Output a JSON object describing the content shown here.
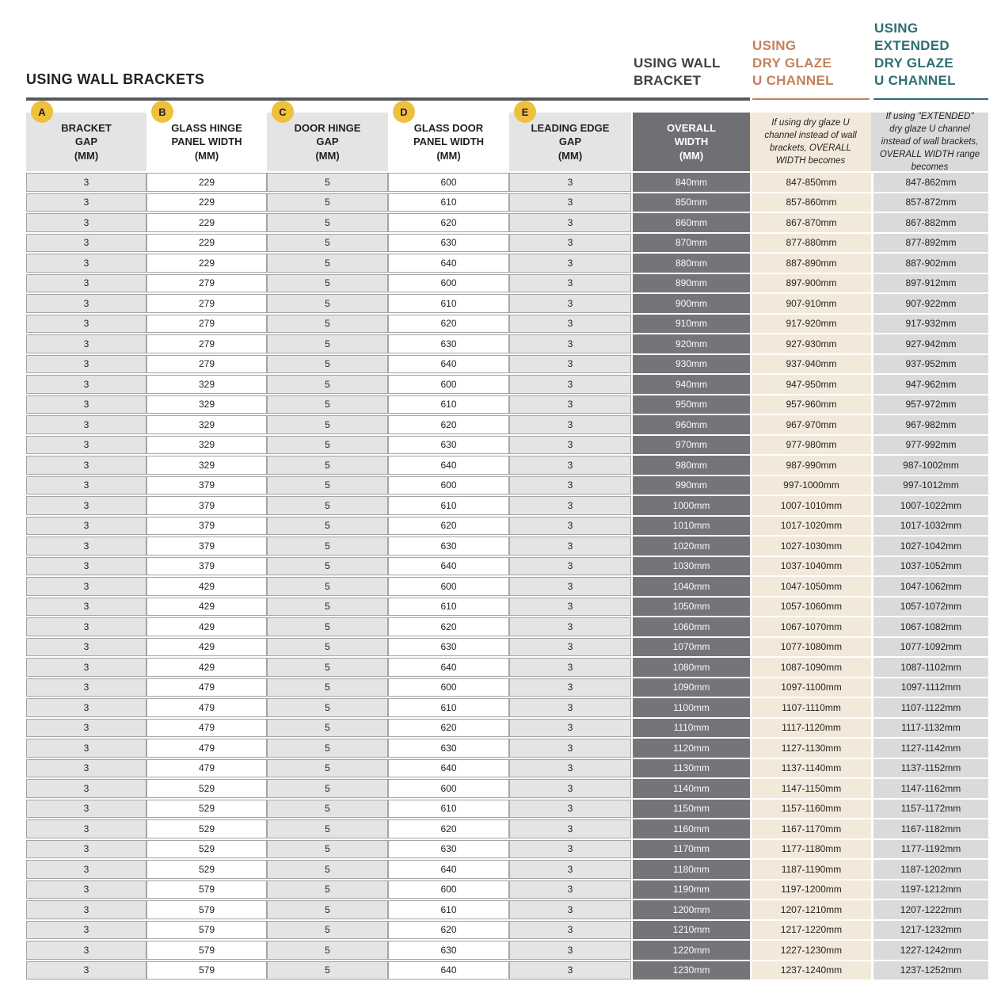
{
  "page_title": "USING WALL BRACKETS",
  "section_headers": {
    "wall_bracket": "USING WALL\nBRACKET",
    "dry_glaze": "USING\nDRY GLAZE\nU CHANNEL",
    "extended_dry_glaze": "USING\nEXTENDED\nDRY GLAZE\nU CHANNEL"
  },
  "colors": {
    "dry_glaze_accent": "#c5805c",
    "extended_dry_glaze_accent": "#2e6e73",
    "badge_yellow": "#efc03d",
    "dark_column": "#6f7073",
    "cream_column": "#f3e9da",
    "light_gray_column": "#d8dadb",
    "row_gray": "#e3e4e4",
    "rule_dark": "#58595b"
  },
  "columns": [
    {
      "id": "bracket-gap",
      "badge": "A",
      "header": "BRACKET\nGAP\n(MM)",
      "style": "gray"
    },
    {
      "id": "glass-hinge-panel-width",
      "badge": "B",
      "header": "GLASS HINGE\nPANEL WIDTH\n(MM)",
      "style": "white"
    },
    {
      "id": "door-hinge-gap",
      "badge": "C",
      "header": "DOOR HINGE\nGAP\n(MM)",
      "style": "gray"
    },
    {
      "id": "glass-door-panel-width",
      "badge": "D",
      "header": "GLASS DOOR\nPANEL WIDTH\n(MM)",
      "style": "white"
    },
    {
      "id": "leading-edge-gap",
      "badge": "E",
      "header": "LEADING EDGE\nGAP\n(MM)",
      "style": "gray"
    },
    {
      "id": "overall-width",
      "header": "OVERALL\nWIDTH\n(MM)",
      "style": "dark"
    },
    {
      "id": "dry-glaze-overall-width",
      "header": "If using dry glaze U channel instead of wall brackets, OVERALL WIDTH becomes",
      "style": "cream"
    },
    {
      "id": "extended-dry-glaze-overall-width",
      "header": "If using \"EXTENDED\" dry glaze U channel instead of wall brackets, OVERALL WIDTH range becomes",
      "style": "lgray"
    }
  ],
  "table": {
    "rows": [
      [
        "3",
        "229",
        "5",
        "600",
        "3",
        "840mm",
        "847-850mm",
        "847-862mm"
      ],
      [
        "3",
        "229",
        "5",
        "610",
        "3",
        "850mm",
        "857-860mm",
        "857-872mm"
      ],
      [
        "3",
        "229",
        "5",
        "620",
        "3",
        "860mm",
        "867-870mm",
        "867-882mm"
      ],
      [
        "3",
        "229",
        "5",
        "630",
        "3",
        "870mm",
        "877-880mm",
        "877-892mm"
      ],
      [
        "3",
        "229",
        "5",
        "640",
        "3",
        "880mm",
        "887-890mm",
        "887-902mm"
      ],
      [
        "3",
        "279",
        "5",
        "600",
        "3",
        "890mm",
        "897-900mm",
        "897-912mm"
      ],
      [
        "3",
        "279",
        "5",
        "610",
        "3",
        "900mm",
        "907-910mm",
        "907-922mm"
      ],
      [
        "3",
        "279",
        "5",
        "620",
        "3",
        "910mm",
        "917-920mm",
        "917-932mm"
      ],
      [
        "3",
        "279",
        "5",
        "630",
        "3",
        "920mm",
        "927-930mm",
        "927-942mm"
      ],
      [
        "3",
        "279",
        "5",
        "640",
        "3",
        "930mm",
        "937-940mm",
        "937-952mm"
      ],
      [
        "3",
        "329",
        "5",
        "600",
        "3",
        "940mm",
        "947-950mm",
        "947-962mm"
      ],
      [
        "3",
        "329",
        "5",
        "610",
        "3",
        "950mm",
        "957-960mm",
        "957-972mm"
      ],
      [
        "3",
        "329",
        "5",
        "620",
        "3",
        "960mm",
        "967-970mm",
        "967-982mm"
      ],
      [
        "3",
        "329",
        "5",
        "630",
        "3",
        "970mm",
        "977-980mm",
        "977-992mm"
      ],
      [
        "3",
        "329",
        "5",
        "640",
        "3",
        "980mm",
        "987-990mm",
        "987-1002mm"
      ],
      [
        "3",
        "379",
        "5",
        "600",
        "3",
        "990mm",
        "997-1000mm",
        "997-1012mm"
      ],
      [
        "3",
        "379",
        "5",
        "610",
        "3",
        "1000mm",
        "1007-1010mm",
        "1007-1022mm"
      ],
      [
        "3",
        "379",
        "5",
        "620",
        "3",
        "1010mm",
        "1017-1020mm",
        "1017-1032mm"
      ],
      [
        "3",
        "379",
        "5",
        "630",
        "3",
        "1020mm",
        "1027-1030mm",
        "1027-1042mm"
      ],
      [
        "3",
        "379",
        "5",
        "640",
        "3",
        "1030mm",
        "1037-1040mm",
        "1037-1052mm"
      ],
      [
        "3",
        "429",
        "5",
        "600",
        "3",
        "1040mm",
        "1047-1050mm",
        "1047-1062mm"
      ],
      [
        "3",
        "429",
        "5",
        "610",
        "3",
        "1050mm",
        "1057-1060mm",
        "1057-1072mm"
      ],
      [
        "3",
        "429",
        "5",
        "620",
        "3",
        "1060mm",
        "1067-1070mm",
        "1067-1082mm"
      ],
      [
        "3",
        "429",
        "5",
        "630",
        "3",
        "1070mm",
        "1077-1080mm",
        "1077-1092mm"
      ],
      [
        "3",
        "429",
        "5",
        "640",
        "3",
        "1080mm",
        "1087-1090mm",
        "1087-1102mm"
      ],
      [
        "3",
        "479",
        "5",
        "600",
        "3",
        "1090mm",
        "1097-1100mm",
        "1097-1112mm"
      ],
      [
        "3",
        "479",
        "5",
        "610",
        "3",
        "1100mm",
        "1107-1110mm",
        "1107-1122mm"
      ],
      [
        "3",
        "479",
        "5",
        "620",
        "3",
        "1110mm",
        "1117-1120mm",
        "1117-1132mm"
      ],
      [
        "3",
        "479",
        "5",
        "630",
        "3",
        "1120mm",
        "1127-1130mm",
        "1127-1142mm"
      ],
      [
        "3",
        "479",
        "5",
        "640",
        "3",
        "1130mm",
        "1137-1140mm",
        "1137-1152mm"
      ],
      [
        "3",
        "529",
        "5",
        "600",
        "3",
        "1140mm",
        "1147-1150mm",
        "1147-1162mm"
      ],
      [
        "3",
        "529",
        "5",
        "610",
        "3",
        "1150mm",
        "1157-1160mm",
        "1157-1172mm"
      ],
      [
        "3",
        "529",
        "5",
        "620",
        "3",
        "1160mm",
        "1167-1170mm",
        "1167-1182mm"
      ],
      [
        "3",
        "529",
        "5",
        "630",
        "3",
        "1170mm",
        "1177-1180mm",
        "1177-1192mm"
      ],
      [
        "3",
        "529",
        "5",
        "640",
        "3",
        "1180mm",
        "1187-1190mm",
        "1187-1202mm"
      ],
      [
        "3",
        "579",
        "5",
        "600",
        "3",
        "1190mm",
        "1197-1200mm",
        "1197-1212mm"
      ],
      [
        "3",
        "579",
        "5",
        "610",
        "3",
        "1200mm",
        "1207-1210mm",
        "1207-1222mm"
      ],
      [
        "3",
        "579",
        "5",
        "620",
        "3",
        "1210mm",
        "1217-1220mm",
        "1217-1232mm"
      ],
      [
        "3",
        "579",
        "5",
        "630",
        "3",
        "1220mm",
        "1227-1230mm",
        "1227-1242mm"
      ],
      [
        "3",
        "579",
        "5",
        "640",
        "3",
        "1230mm",
        "1237-1240mm",
        "1237-1252mm"
      ]
    ]
  }
}
